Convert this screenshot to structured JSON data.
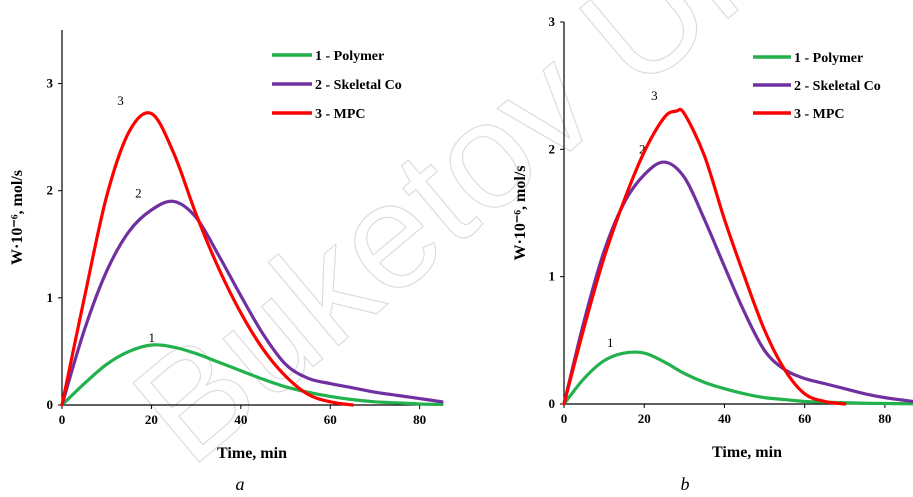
{
  "watermark": "Buketov Univ",
  "chart_data": [
    {
      "type": "line",
      "panel_label": "a",
      "xlabel": "Time, min",
      "ylabel": "W·10⁻⁶, mol/s",
      "xlim": [
        0,
        85
      ],
      "ylim": [
        0,
        3.5
      ],
      "xticks": [
        0,
        20,
        40,
        60,
        80
      ],
      "yticks": [
        0,
        1,
        2,
        3
      ],
      "grid": false,
      "legend_position": "top-right",
      "series": [
        {
          "name": "1 - Polymer",
          "label": "1",
          "color": "#22b14c",
          "x": [
            0,
            5,
            10,
            15,
            20,
            25,
            30,
            35,
            40,
            45,
            50,
            55,
            60,
            65,
            70,
            75,
            80,
            85
          ],
          "y": [
            0,
            0.2,
            0.38,
            0.5,
            0.56,
            0.54,
            0.48,
            0.4,
            0.32,
            0.24,
            0.17,
            0.12,
            0.08,
            0.05,
            0.03,
            0.02,
            0.01,
            0.005
          ]
        },
        {
          "name": "2 - Skeletal Co",
          "label": "2",
          "color": "#7030a0",
          "x": [
            0,
            5,
            10,
            15,
            20,
            25,
            30,
            35,
            40,
            45,
            50,
            55,
            60,
            65,
            70,
            75,
            80,
            85
          ],
          "y": [
            0,
            0.7,
            1.25,
            1.62,
            1.82,
            1.9,
            1.75,
            1.4,
            1.02,
            0.66,
            0.38,
            0.25,
            0.2,
            0.16,
            0.12,
            0.09,
            0.06,
            0.03
          ]
        },
        {
          "name": "3 - MPC",
          "label": "3",
          "color": "#ff0000",
          "x": [
            0,
            5,
            10,
            15,
            20,
            25,
            30,
            35,
            40,
            45,
            50,
            55,
            60,
            65
          ],
          "y": [
            0,
            1.0,
            1.95,
            2.55,
            2.72,
            2.35,
            1.78,
            1.28,
            0.86,
            0.52,
            0.27,
            0.1,
            0.03,
            0
          ]
        }
      ]
    },
    {
      "type": "line",
      "panel_label": "b",
      "xlabel": "Time, min",
      "ylabel": "W·10⁻⁶, mol/s",
      "xlim": [
        0,
        87
      ],
      "ylim": [
        0,
        3
      ],
      "xticks": [
        0,
        20,
        40,
        60,
        80
      ],
      "yticks": [
        0,
        1,
        2,
        3
      ],
      "grid": false,
      "legend_position": "top-right",
      "series": [
        {
          "name": "1 - Polymer",
          "label": "1",
          "color": "#22b14c",
          "x": [
            0,
            5,
            10,
            15,
            20,
            25,
            30,
            35,
            40,
            45,
            50,
            55,
            60,
            65,
            70,
            75,
            80,
            87
          ],
          "y": [
            0,
            0.2,
            0.34,
            0.4,
            0.4,
            0.33,
            0.24,
            0.17,
            0.12,
            0.08,
            0.05,
            0.035,
            0.02,
            0.015,
            0.01,
            0.006,
            0.004,
            0.002
          ]
        },
        {
          "name": "2 - Skeletal Co",
          "label": "2",
          "color": "#7030a0",
          "x": [
            0,
            5,
            10,
            15,
            20,
            25,
            30,
            35,
            40,
            45,
            50,
            55,
            60,
            65,
            70,
            75,
            80,
            87
          ],
          "y": [
            0,
            0.65,
            1.2,
            1.58,
            1.8,
            1.9,
            1.78,
            1.45,
            1.08,
            0.72,
            0.42,
            0.27,
            0.2,
            0.16,
            0.12,
            0.08,
            0.05,
            0.02
          ]
        },
        {
          "name": "3 - MPC",
          "label": "3",
          "color": "#ff0000",
          "x": [
            0,
            5,
            10,
            15,
            20,
            25,
            28,
            30,
            35,
            40,
            45,
            50,
            55,
            60,
            65,
            70
          ],
          "y": [
            0,
            0.6,
            1.15,
            1.6,
            1.98,
            2.25,
            2.3,
            2.28,
            1.95,
            1.45,
            1.0,
            0.58,
            0.27,
            0.08,
            0.02,
            0
          ]
        }
      ]
    }
  ]
}
